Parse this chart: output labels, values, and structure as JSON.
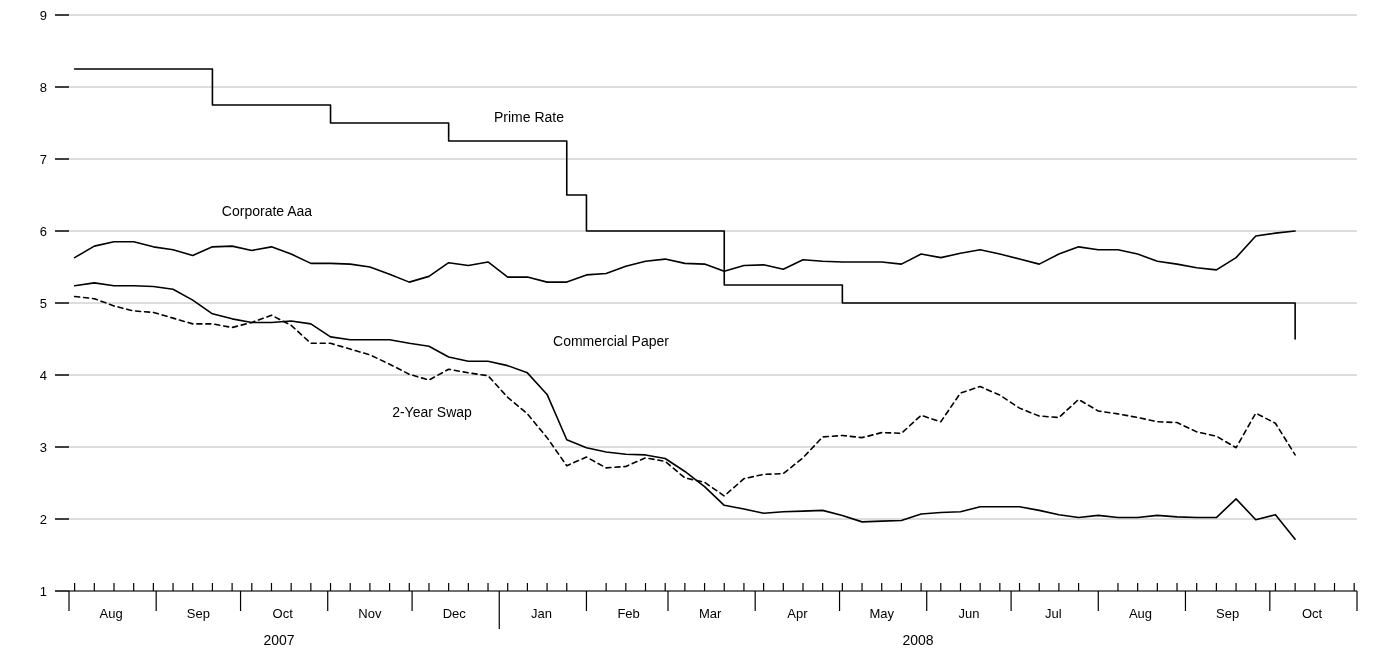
{
  "chart_data": {
    "type": "line",
    "xlim": [
      "2007-08-01",
      "2008-11-01"
    ],
    "ylim": [
      1,
      9
    ],
    "yticks": [
      1,
      2,
      3,
      4,
      5,
      6,
      7,
      8,
      9
    ],
    "grid": "y",
    "xticks": [
      {
        "value": "2007-08-03",
        "label": null
      },
      {
        "value": "2007-08-10",
        "label": null
      },
      {
        "value": "2007-08-17",
        "label": null
      },
      {
        "value": "2007-08-24",
        "label": null
      },
      {
        "value": "2007-08-31",
        "label": null
      },
      {
        "value": "2007-09-07",
        "label": null
      },
      {
        "value": "2007-09-14",
        "label": null
      },
      {
        "value": "2007-09-21",
        "label": null
      },
      {
        "value": "2007-09-28",
        "label": null
      },
      {
        "value": "2007-10-05",
        "label": null
      },
      {
        "value": "2007-10-12",
        "label": null
      },
      {
        "value": "2007-10-19",
        "label": null
      },
      {
        "value": "2007-10-26",
        "label": null
      },
      {
        "value": "2007-11-02",
        "label": null
      },
      {
        "value": "2007-11-09",
        "label": null
      },
      {
        "value": "2007-11-16",
        "label": null
      },
      {
        "value": "2007-11-23",
        "label": null
      },
      {
        "value": "2007-11-30",
        "label": null
      },
      {
        "value": "2007-12-07",
        "label": null
      },
      {
        "value": "2007-12-14",
        "label": null
      },
      {
        "value": "2007-12-21",
        "label": null
      },
      {
        "value": "2007-12-28",
        "label": null
      },
      {
        "value": "2008-01-04",
        "label": null
      },
      {
        "value": "2008-01-11",
        "label": null
      },
      {
        "value": "2008-01-18",
        "label": null
      },
      {
        "value": "2008-01-25",
        "label": null
      },
      {
        "value": "2008-02-08",
        "label": null
      },
      {
        "value": "2008-02-15",
        "label": null
      },
      {
        "value": "2008-02-22",
        "label": null
      },
      {
        "value": "2008-02-29",
        "label": null
      },
      {
        "value": "2008-03-07",
        "label": null
      },
      {
        "value": "2008-03-14",
        "label": null
      },
      {
        "value": "2008-03-21",
        "label": null
      },
      {
        "value": "2008-03-28",
        "label": null
      },
      {
        "value": "2008-04-04",
        "label": null
      },
      {
        "value": "2008-04-11",
        "label": null
      },
      {
        "value": "2008-04-18",
        "label": null
      },
      {
        "value": "2008-04-25",
        "label": null
      },
      {
        "value": "2008-05-02",
        "label": null
      },
      {
        "value": "2008-05-09",
        "label": null
      },
      {
        "value": "2008-05-16",
        "label": null
      },
      {
        "value": "2008-05-23",
        "label": null
      },
      {
        "value": "2008-05-30",
        "label": null
      },
      {
        "value": "2008-06-06",
        "label": null
      },
      {
        "value": "2008-06-13",
        "label": null
      },
      {
        "value": "2008-06-20",
        "label": null
      },
      {
        "value": "2008-06-27",
        "label": null
      },
      {
        "value": "2008-07-04",
        "label": null
      },
      {
        "value": "2008-07-11",
        "label": null
      },
      {
        "value": "2008-07-18",
        "label": null
      },
      {
        "value": "2008-07-25",
        "label": null
      },
      {
        "value": "2008-08-08",
        "label": null
      },
      {
        "value": "2008-08-15",
        "label": null
      },
      {
        "value": "2008-08-22",
        "label": null
      },
      {
        "value": "2008-08-29",
        "label": null
      },
      {
        "value": "2008-09-05",
        "label": null
      },
      {
        "value": "2008-09-12",
        "label": null
      },
      {
        "value": "2008-09-19",
        "label": null
      },
      {
        "value": "2008-09-26",
        "label": null
      },
      {
        "value": "2008-10-03",
        "label": null
      },
      {
        "value": "2008-10-10",
        "label": null
      },
      {
        "value": "2008-10-17",
        "label": null
      },
      {
        "value": "2008-10-24",
        "label": null
      },
      {
        "value": "2008-10-31",
        "label": null
      },
      {
        "value": "2007-08-01",
        "label": null
      },
      {
        "value": "2007-09-01",
        "label": null
      },
      {
        "value": "2007-10-01",
        "label": null
      },
      {
        "value": "2007-11-01",
        "label": null
      },
      {
        "value": "2007-12-01",
        "label": null
      },
      {
        "value": "2008-01-01",
        "label": null
      },
      {
        "value": "2008-02-01",
        "label": null
      },
      {
        "value": "2008-03-01",
        "label": null
      },
      {
        "value": "2008-04-01",
        "label": null
      },
      {
        "value": "2008-05-01",
        "label": null
      },
      {
        "value": "2008-06-01",
        "label": null
      },
      {
        "value": "2008-07-01",
        "label": null
      },
      {
        "value": "2008-08-01",
        "label": null
      },
      {
        "value": "2008-09-01",
        "label": null
      },
      {
        "value": "2008-10-01",
        "label": null
      },
      {
        "value": "2008-11-01",
        "label": null
      },
      {
        "value": "2007-08-16",
        "label": "Aug"
      },
      {
        "value": "2007-09-16",
        "label": "Sep"
      },
      {
        "value": "2007-10-16",
        "label": "Oct"
      },
      {
        "value": "2007-11-16",
        "label": "Nov"
      },
      {
        "value": "2007-12-16",
        "label": "Dec"
      },
      {
        "value": "2008-01-16",
        "label": "Jan"
      },
      {
        "value": "2008-02-16",
        "label": "Feb"
      },
      {
        "value": "2008-03-16",
        "label": "Mar"
      },
      {
        "value": "2008-04-16",
        "label": "Apr"
      },
      {
        "value": "2008-05-16",
        "label": "May"
      },
      {
        "value": "2008-06-16",
        "label": "Jun"
      },
      {
        "value": "2008-07-16",
        "label": "Jul"
      },
      {
        "value": "2008-08-16",
        "label": "Aug"
      },
      {
        "value": "2008-09-16",
        "label": "Sep"
      },
      {
        "value": "2008-10-16",
        "label": "Oct"
      }
    ],
    "x": [
      "2007-08-03",
      "2007-08-10",
      "2007-08-17",
      "2007-08-24",
      "2007-08-31",
      "2007-09-07",
      "2007-09-14",
      "2007-09-21",
      "2007-09-28",
      "2007-10-05",
      "2007-10-12",
      "2007-10-19",
      "2007-10-26",
      "2007-11-02",
      "2007-11-09",
      "2007-11-16",
      "2007-11-23",
      "2007-11-30",
      "2007-12-07",
      "2007-12-14",
      "2007-12-21",
      "2007-12-28",
      "2008-01-04",
      "2008-01-11",
      "2008-01-18",
      "2008-01-25",
      "2008-02-01",
      "2008-02-08",
      "2008-02-15",
      "2008-02-22",
      "2008-02-29",
      "2008-03-07",
      "2008-03-14",
      "2008-03-21",
      "2008-03-28",
      "2008-04-04",
      "2008-04-11",
      "2008-04-18",
      "2008-04-25",
      "2008-05-02",
      "2008-05-09",
      "2008-05-16",
      "2008-05-23",
      "2008-05-30",
      "2008-06-06",
      "2008-06-13",
      "2008-06-20",
      "2008-06-27",
      "2008-07-04",
      "2008-07-11",
      "2008-07-18",
      "2008-07-25",
      "2008-08-01",
      "2008-08-08",
      "2008-08-15",
      "2008-08-22",
      "2008-08-29",
      "2008-09-05",
      "2008-09-12",
      "2008-09-19",
      "2008-09-26",
      "2008-10-03",
      "2008-10-10"
    ],
    "series": [
      {
        "type": "step",
        "color": "#000000",
        "x": [
          "2007-08-03",
          "2007-09-21",
          "2007-11-02",
          "2007-12-14",
          "2008-01-25",
          "2008-02-01",
          "2008-03-21",
          "2008-05-02",
          "2008-10-10"
        ],
        "values": [
          8.25,
          7.75,
          7.5,
          7.25,
          6.5,
          6.0,
          5.25,
          5.0,
          4.5
        ]
      },
      {
        "type": "line",
        "color": "#000000",
        "line_style": "solid",
        "values": [
          5.63,
          5.79,
          5.85,
          5.85,
          5.78,
          5.74,
          5.66,
          5.78,
          5.79,
          5.73,
          5.78,
          5.68,
          5.55,
          5.55,
          5.54,
          5.5,
          5.4,
          5.29,
          5.37,
          5.56,
          5.52,
          5.57,
          5.36,
          5.36,
          5.29,
          5.29,
          5.39,
          5.41,
          5.51,
          5.58,
          5.61,
          5.55,
          5.54,
          5.44,
          5.52,
          5.53,
          5.47,
          5.6,
          5.58,
          5.57,
          5.57,
          5.57,
          5.54,
          5.68,
          5.63,
          5.69,
          5.74,
          5.68,
          5.61,
          5.54,
          5.68,
          5.78,
          5.74,
          5.74,
          5.68,
          5.58,
          5.54,
          5.49,
          5.46,
          5.63,
          5.93,
          5.97,
          6.0
        ]
      },
      {
        "type": "line",
        "color": "#000000",
        "line_style": "dashed",
        "values": [
          5.09,
          5.06,
          4.96,
          4.89,
          4.87,
          4.79,
          4.71,
          4.71,
          4.66,
          4.73,
          4.83,
          4.69,
          4.44,
          4.44,
          4.36,
          4.28,
          4.15,
          4.01,
          3.93,
          4.08,
          4.03,
          3.99,
          3.69,
          3.46,
          3.13,
          2.74,
          2.86,
          2.71,
          2.73,
          2.85,
          2.8,
          2.57,
          2.51,
          2.32,
          2.56,
          2.62,
          2.63,
          2.85,
          3.14,
          3.16,
          3.13,
          3.2,
          3.19,
          3.44,
          3.35,
          3.75,
          3.84,
          3.72,
          3.54,
          3.43,
          3.41,
          3.66,
          3.5,
          3.46,
          3.41,
          3.35,
          3.34,
          3.21,
          3.15,
          2.99,
          3.47,
          3.33,
          2.89
        ]
      },
      {
        "type": "line",
        "color": "#000000",
        "line_style": "solid",
        "values": [
          5.24,
          5.28,
          5.24,
          5.24,
          5.23,
          5.19,
          5.04,
          4.85,
          4.78,
          4.73,
          4.73,
          4.75,
          4.71,
          4.53,
          4.49,
          4.49,
          4.49,
          4.44,
          4.4,
          4.25,
          4.19,
          4.19,
          4.13,
          4.03,
          3.73,
          3.1,
          2.99,
          2.93,
          2.9,
          2.89,
          2.84,
          2.66,
          2.45,
          2.19,
          2.14,
          2.08,
          2.1,
          2.11,
          2.12,
          2.05,
          1.96,
          1.97,
          1.98,
          2.07,
          2.09,
          2.1,
          2.17,
          2.17,
          2.17,
          2.12,
          2.06,
          2.02,
          2.05,
          2.02,
          2.02,
          2.05,
          2.03,
          2.02,
          2.02,
          2.28,
          1.99,
          2.06,
          1.72
        ]
      }
    ],
    "annotations": [
      "Prime Rate",
      "Corporate Aaa",
      "Commercial Paper",
      "2-Year Swap",
      "2007",
      "2008"
    ]
  }
}
